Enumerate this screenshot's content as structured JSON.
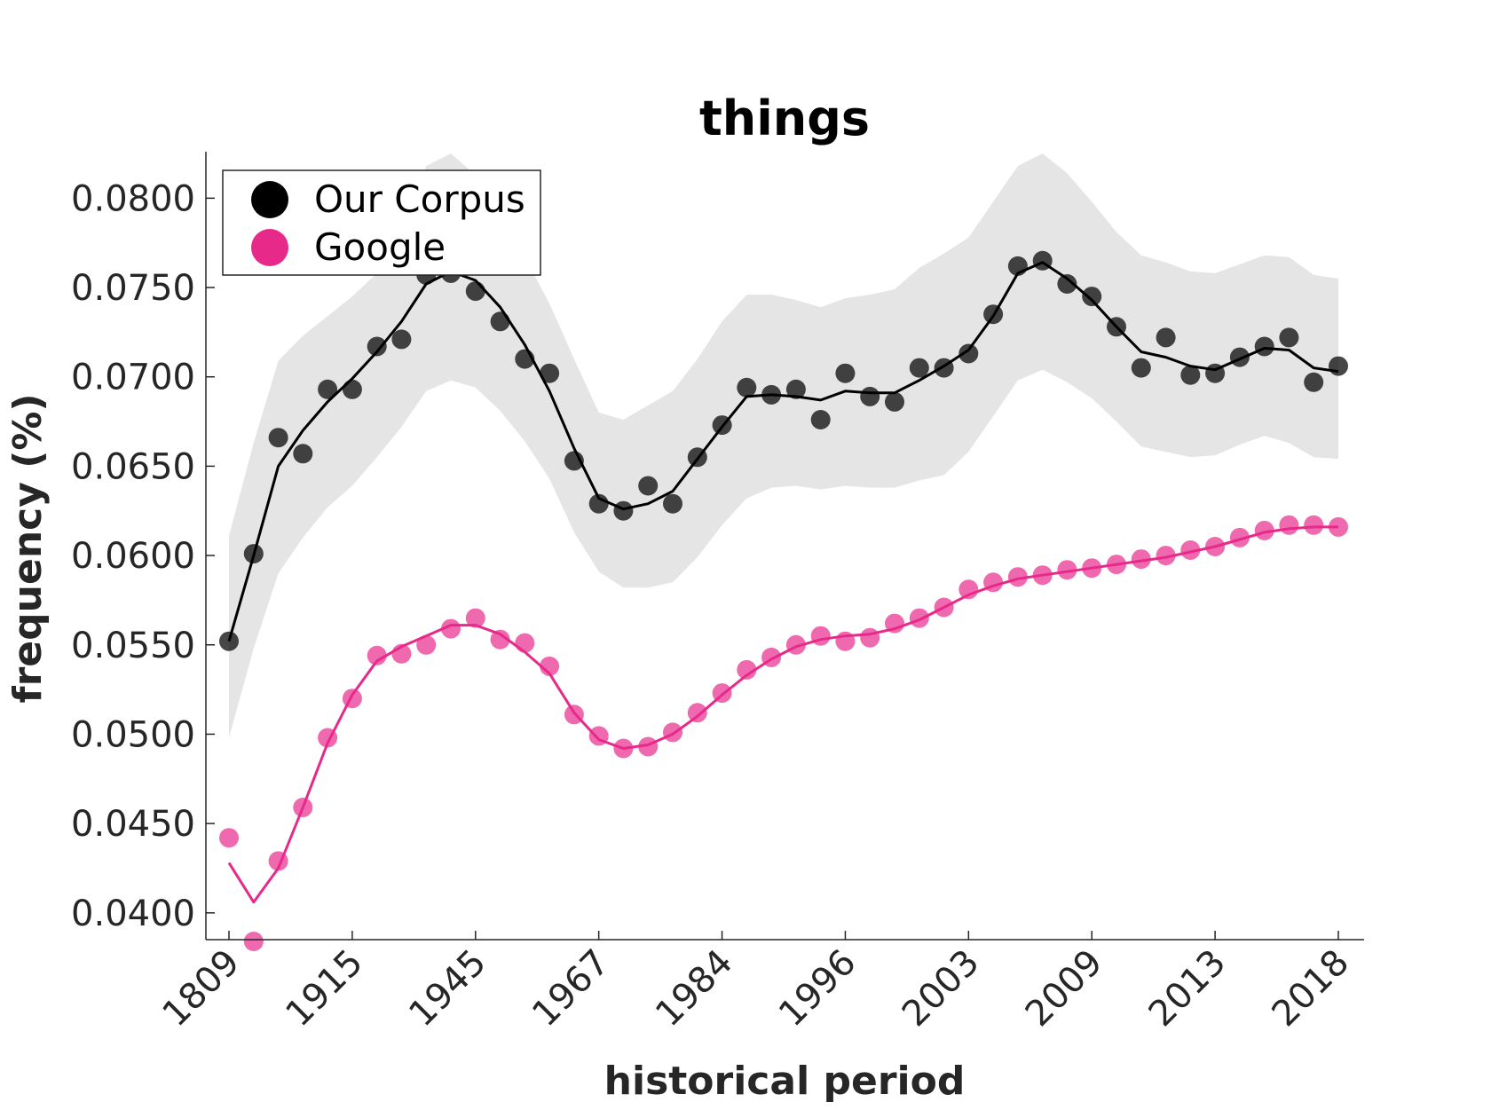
{
  "chart_data": {
    "type": "line",
    "title": "things",
    "xlabel": "historical period",
    "ylabel": "frequency (%)",
    "ylim": [
      0.0385,
      0.0826
    ],
    "yticks": [
      "0.0400",
      "0.0450",
      "0.0500",
      "0.0550",
      "0.0600",
      "0.0650",
      "0.0700",
      "0.0750",
      "0.0800"
    ],
    "ytick_values": [
      0.04,
      0.045,
      0.05,
      0.055,
      0.06,
      0.065,
      0.07,
      0.075,
      0.08
    ],
    "xtick_labels": [
      "1809",
      "1915",
      "1945",
      "1967",
      "1984",
      "1996",
      "2003",
      "2009",
      "2013",
      "2018"
    ],
    "xtick_indices": [
      0,
      5,
      10,
      15,
      20,
      25,
      30,
      35,
      40,
      45
    ],
    "grid": false,
    "legend_position": "top-left",
    "series": [
      {
        "name": "Our Corpus",
        "color": "#000000",
        "points": [
          0.0552,
          0.0601,
          0.0666,
          0.0657,
          0.0693,
          0.0693,
          0.0717,
          0.0721,
          0.0757,
          0.0758,
          0.0748,
          0.0731,
          0.071,
          0.0702,
          0.0653,
          0.0629,
          0.0625,
          0.0639,
          0.0629,
          0.0655,
          0.0673,
          0.0694,
          0.069,
          0.0693,
          0.0676,
          0.0702,
          0.0689,
          0.0686,
          0.0705,
          0.0705,
          0.0713,
          0.0735,
          0.0762,
          0.0765,
          0.0752,
          0.0745,
          0.0728,
          0.0705,
          0.0722,
          0.0701,
          0.0702,
          0.0711,
          0.0717,
          0.0722,
          0.0697,
          0.0706
        ],
        "smooth": [
          0.0552,
          0.06,
          0.065,
          0.067,
          0.0686,
          0.0699,
          0.0714,
          0.0731,
          0.0752,
          0.0759,
          0.0754,
          0.0739,
          0.0718,
          0.0692,
          0.066,
          0.0632,
          0.0626,
          0.0629,
          0.0636,
          0.0654,
          0.0672,
          0.0689,
          0.069,
          0.0689,
          0.0687,
          0.0692,
          0.0691,
          0.0691,
          0.0698,
          0.0706,
          0.0715,
          0.0734,
          0.0758,
          0.0764,
          0.0755,
          0.0743,
          0.0728,
          0.0714,
          0.0711,
          0.0706,
          0.0704,
          0.071,
          0.0716,
          0.0715,
          0.0705,
          0.0703
        ],
        "band_upper": [
          0.0611,
          0.0663,
          0.0709,
          0.0723,
          0.0734,
          0.0745,
          0.0758,
          0.0776,
          0.0818,
          0.0825,
          0.0813,
          0.0791,
          0.0767,
          0.0741,
          0.071,
          0.068,
          0.0676,
          0.0684,
          0.0692,
          0.071,
          0.0731,
          0.0746,
          0.0746,
          0.0743,
          0.0739,
          0.0744,
          0.0746,
          0.0749,
          0.0761,
          0.0769,
          0.0778,
          0.0798,
          0.0818,
          0.0825,
          0.0814,
          0.0798,
          0.0781,
          0.0768,
          0.0764,
          0.0759,
          0.0758,
          0.0763,
          0.0768,
          0.0767,
          0.0757,
          0.0755
        ],
        "band_lower": [
          0.0498,
          0.0548,
          0.059,
          0.061,
          0.0627,
          0.0639,
          0.0655,
          0.0672,
          0.0692,
          0.0698,
          0.0694,
          0.0681,
          0.0664,
          0.0643,
          0.0613,
          0.0591,
          0.0582,
          0.0582,
          0.0585,
          0.0599,
          0.0617,
          0.0632,
          0.0638,
          0.0639,
          0.0637,
          0.0639,
          0.0638,
          0.0638,
          0.0642,
          0.0645,
          0.0658,
          0.0678,
          0.0698,
          0.0704,
          0.0697,
          0.0688,
          0.0675,
          0.0661,
          0.0658,
          0.0655,
          0.0656,
          0.0662,
          0.0667,
          0.0663,
          0.0655,
          0.0654
        ]
      },
      {
        "name": "Google",
        "color": "#e7298a",
        "points": [
          0.0442,
          0.0384,
          0.0429,
          0.0459,
          0.0498,
          0.052,
          0.0544,
          0.0545,
          0.055,
          0.0559,
          0.0565,
          0.0553,
          0.0551,
          0.0538,
          0.0511,
          0.0499,
          0.0492,
          0.0493,
          0.0501,
          0.0512,
          0.0523,
          0.0536,
          0.0543,
          0.055,
          0.0555,
          0.0552,
          0.0554,
          0.0562,
          0.0565,
          0.0571,
          0.0581,
          0.0585,
          0.0588,
          0.0589,
          0.0592,
          0.0593,
          0.0595,
          0.0598,
          0.06,
          0.0603,
          0.0605,
          0.061,
          0.0614,
          0.0617,
          0.0617,
          0.0616
        ],
        "smooth": [
          0.0428,
          0.0406,
          0.0425,
          0.0459,
          0.0495,
          0.0522,
          0.0541,
          0.0549,
          0.0555,
          0.0561,
          0.0561,
          0.0556,
          0.0546,
          0.0534,
          0.0512,
          0.0497,
          0.0492,
          0.0494,
          0.05,
          0.051,
          0.0522,
          0.0533,
          0.0542,
          0.0549,
          0.0553,
          0.0555,
          0.0556,
          0.0559,
          0.0564,
          0.0571,
          0.0578,
          0.0583,
          0.0587,
          0.0589,
          0.0591,
          0.0593,
          0.0595,
          0.0597,
          0.0599,
          0.0602,
          0.0605,
          0.0609,
          0.0613,
          0.0615,
          0.0616,
          0.0616
        ]
      }
    ]
  }
}
